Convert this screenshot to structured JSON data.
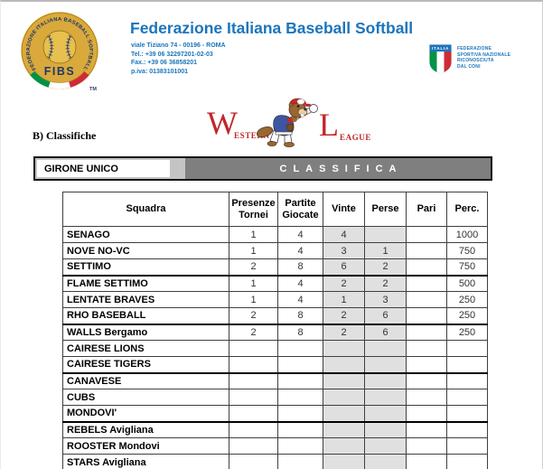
{
  "header": {
    "title": "Federazione Italiana Baseball Softball",
    "address_lines": [
      "viale Tiziano 74 - 00196 - ROMA",
      "Tel.: +39 06 32297201-02-03",
      "Fax.: +39 06 36858201",
      "p.iva: 01383101001"
    ],
    "fibs_logo": {
      "ring_text": "FEDERAZIONE ITALIANA BASEBALL SOFTBALL",
      "acronym": "FIBS",
      "trademark": "TM"
    },
    "coni_logo": {
      "shield_label": "ITALIA",
      "lines": [
        "FEDERAZIONE",
        "SPORTIVA NAZIONALE",
        "RICONOSCIUTA"
      ],
      "recognition_prefix": "DAL ",
      "recognition_bold": "CONI"
    }
  },
  "section_label": "B) Classifiche",
  "league_logo": {
    "word1_initial": "W",
    "word1_rest": "ESTERN",
    "word2_initial": "L",
    "word2_rest": "EAGUE"
  },
  "girone_bar": {
    "girone_label": "GIRONE UNICO",
    "classifica_label": "CLASSIFICA"
  },
  "standings": {
    "columns": [
      "Squadra",
      "Presenze\nTornei",
      "Partite\nGiocate",
      "Vinte",
      "Perse",
      "Pari",
      "Perc."
    ],
    "rows": [
      {
        "squadra": "SENAGO",
        "presenze_tornei": "1",
        "partite_giocate": "4",
        "vinte": "4",
        "perse": "",
        "pari": "",
        "perc": "1000"
      },
      {
        "squadra": "NOVE NO-VC",
        "presenze_tornei": "1",
        "partite_giocate": "4",
        "vinte": "3",
        "perse": "1",
        "pari": "",
        "perc": "750"
      },
      {
        "squadra": "SETTIMO",
        "presenze_tornei": "2",
        "partite_giocate": "8",
        "vinte": "6",
        "perse": "2",
        "pari": "",
        "perc": "750"
      },
      {
        "squadra": "FLAME SETTIMO",
        "presenze_tornei": "1",
        "partite_giocate": "4",
        "vinte": "2",
        "perse": "2",
        "pari": "",
        "perc": "500"
      },
      {
        "squadra": "LENTATE BRAVES",
        "presenze_tornei": "1",
        "partite_giocate": "4",
        "vinte": "1",
        "perse": "3",
        "pari": "",
        "perc": "250"
      },
      {
        "squadra": "RHO BASEBALL",
        "presenze_tornei": "2",
        "partite_giocate": "8",
        "vinte": "2",
        "perse": "6",
        "pari": "",
        "perc": "250"
      },
      {
        "squadra": "WALLS Bergamo",
        "presenze_tornei": "2",
        "partite_giocate": "8",
        "vinte": "2",
        "perse": "6",
        "pari": "",
        "perc": "250"
      },
      {
        "squadra": "CAIRESE LIONS",
        "presenze_tornei": "",
        "partite_giocate": "",
        "vinte": "",
        "perse": "",
        "pari": "",
        "perc": ""
      },
      {
        "squadra": "CAIRESE TIGERS",
        "presenze_tornei": "",
        "partite_giocate": "",
        "vinte": "",
        "perse": "",
        "pari": "",
        "perc": ""
      },
      {
        "squadra": "CANAVESE",
        "presenze_tornei": "",
        "partite_giocate": "",
        "vinte": "",
        "perse": "",
        "pari": "",
        "perc": ""
      },
      {
        "squadra": "CUBS",
        "presenze_tornei": "",
        "partite_giocate": "",
        "vinte": "",
        "perse": "",
        "pari": "",
        "perc": ""
      },
      {
        "squadra": "MONDOVI'",
        "presenze_tornei": "",
        "partite_giocate": "",
        "vinte": "",
        "perse": "",
        "pari": "",
        "perc": ""
      },
      {
        "squadra": "REBELS Avigliana",
        "presenze_tornei": "",
        "partite_giocate": "",
        "vinte": "",
        "perse": "",
        "pari": "",
        "perc": ""
      },
      {
        "squadra": "ROOSTER Mondovi",
        "presenze_tornei": "",
        "partite_giocate": "",
        "vinte": "",
        "perse": "",
        "pari": "",
        "perc": ""
      },
      {
        "squadra": "STARS Avigliana",
        "presenze_tornei": "",
        "partite_giocate": "",
        "vinte": "",
        "perse": "",
        "pari": "",
        "perc": ""
      }
    ]
  },
  "colors": {
    "brand_blue": "#1B75BC",
    "logo_red": "#C1272D",
    "bar_dark_gray": "#7F7F7F",
    "bar_light_gray": "#C4C4C4",
    "shaded_cell": "#E0E0E0",
    "fibs_gold": "#D9A93B",
    "fibs_navy": "#21386B",
    "flag_green": "#009246",
    "flag_red": "#CE2B37"
  }
}
